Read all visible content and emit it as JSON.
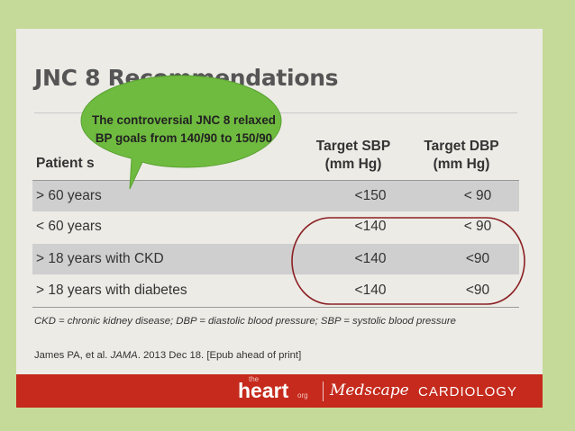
{
  "slide": {
    "title": "JNC 8 Recommendations",
    "columns": {
      "patient": "Patient s",
      "sbp": "Target SBP (mm Hg)",
      "dbp": "Target DBP (mm Hg)"
    },
    "rows": [
      {
        "patient": "> 60 years",
        "sbp": "<150",
        "dbp": "< 90"
      },
      {
        "patient": "< 60 years",
        "sbp": "<140",
        "dbp": "< 90"
      },
      {
        "patient": "> 18 years with CKD",
        "sbp": "<140",
        "dbp": "<90"
      },
      {
        "patient": "> 18 years with diabetes",
        "sbp": "<140",
        "dbp": "<90"
      }
    ],
    "footnote": "CKD = chronic kidney disease; DBP = diastolic blood pressure; SBP = systolic blood pressure",
    "citation_pre": "James PA, et al. ",
    "citation_journal": "JAMA",
    "citation_post": ". 2013 Dec 18. [Epub ahead of print]"
  },
  "callout": {
    "text": "The controversial JNC 8 relaxed BP goals from 140/90 to 150/90",
    "fill_color": "#6fbb3f"
  },
  "highlight_color": "#8b1f22",
  "footer": {
    "the": "the",
    "heart": "heart",
    "org": "org",
    "medscape": "Medscape",
    "cardiology": "CARDIOLOGY",
    "bar_color": "#c52a1c"
  }
}
